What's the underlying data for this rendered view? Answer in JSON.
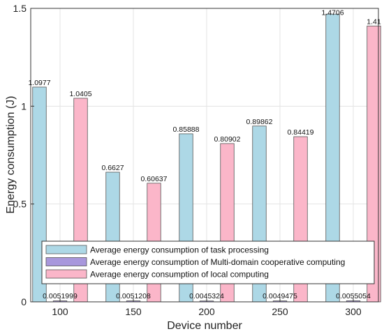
{
  "chart_data": {
    "type": "bar",
    "xlabel": "Device number",
    "ylabel": "Energy consumption (J)",
    "categories": [
      "100",
      "150",
      "200",
      "250",
      "300"
    ],
    "ylim": [
      0,
      1.5
    ],
    "yticks": [
      0,
      0.5,
      1,
      1.5
    ],
    "yticklabels": [
      "0",
      "0.5",
      "1",
      "1.5"
    ],
    "grid": true,
    "legend_position": "bottom-inside",
    "series": [
      {
        "name": "Average energy consumption of task processing",
        "values": [
          1.0977,
          0.6627,
          0.85888,
          0.89862,
          1.4706
        ],
        "labels": [
          "1.0977",
          "0.6627",
          "0.85888",
          "0.89862",
          "1.4706"
        ],
        "color": "#add8e6"
      },
      {
        "name": "Average energy consumption of Multi-domain cooperative computing",
        "values": [
          0.0051999,
          0.0051208,
          0.0045324,
          0.0049475,
          0.0055054
        ],
        "labels": [
          "0.0051999",
          "0.0051208",
          "0.0045324",
          "0.0049475",
          "0.0055054"
        ],
        "color": "#a897dc"
      },
      {
        "name": "Average energy consumption of local computing",
        "values": [
          1.0405,
          0.60637,
          0.80902,
          0.84419,
          1.41
        ],
        "labels": [
          "1.0405",
          "0.60637",
          "0.80902",
          "0.84419",
          "1.41"
        ],
        "color": "#fbb6c9"
      }
    ]
  }
}
